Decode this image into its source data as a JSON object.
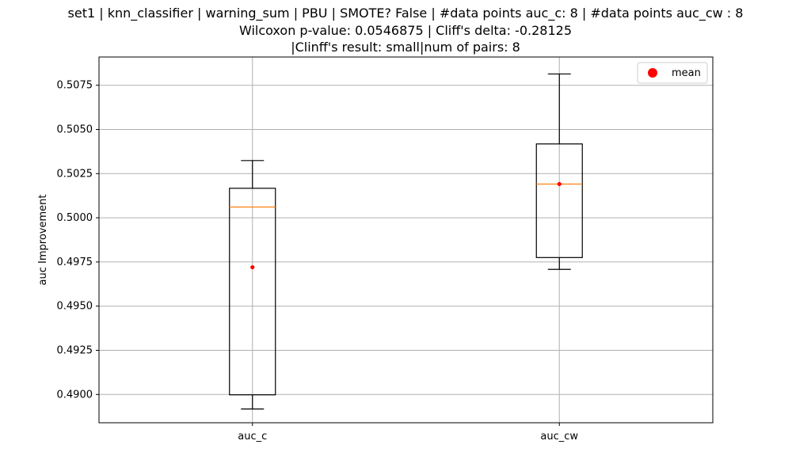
{
  "chart_data": {
    "type": "box",
    "title_lines": [
      "set1 | knn_classifier | warning_sum | PBU | SMOTE? False | #data points auc_c: 8 | #data points auc_cw : 8",
      "Wilcoxon p-value: 0.0546875 | Cliff's delta: -0.28125",
      "|Clinff's result: small|num of pairs: 8"
    ],
    "xlabel": "",
    "ylabel": "auc Improvement",
    "ylim": [
      0.4884,
      0.5091
    ],
    "yticks": [
      {
        "value": 0.49,
        "label": "0.4900"
      },
      {
        "value": 0.4925,
        "label": "0.4925"
      },
      {
        "value": 0.495,
        "label": "0.4950"
      },
      {
        "value": 0.4975,
        "label": "0.4975"
      },
      {
        "value": 0.5,
        "label": "0.5000"
      },
      {
        "value": 0.5025,
        "label": "0.5025"
      },
      {
        "value": 0.505,
        "label": "0.5050"
      },
      {
        "value": 0.5075,
        "label": "0.5075"
      }
    ],
    "grid": true,
    "legend": {
      "placement": "top-right",
      "entries": [
        {
          "label": "mean",
          "color": "#ff0000"
        }
      ]
    },
    "colors": {
      "box": "#000000",
      "median": "#ff7f0e",
      "mean": "#ff0000",
      "grid": "#b0b0b0"
    },
    "categories": [
      "auc_c",
      "auc_cw"
    ],
    "boxes": [
      {
        "name": "auc_c",
        "whisker_low": 0.48918,
        "q1": 0.48998,
        "median": 0.50061,
        "q3": 0.50167,
        "whisker_high": 0.50324,
        "mean": 0.4972
      },
      {
        "name": "auc_cw",
        "whisker_low": 0.49708,
        "q1": 0.49775,
        "median": 0.50191,
        "q3": 0.50418,
        "whisker_high": 0.50814,
        "mean": 0.50191
      }
    ]
  }
}
